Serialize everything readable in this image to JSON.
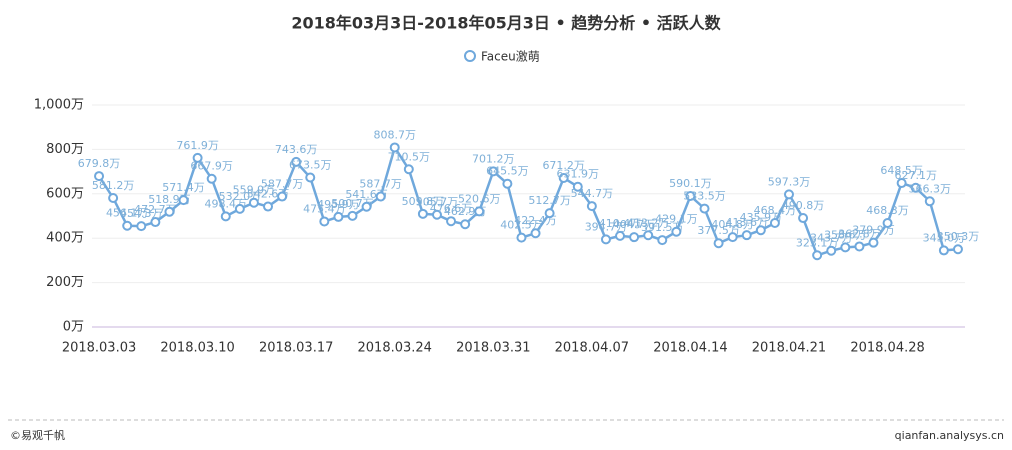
{
  "chart_data": {
    "type": "line",
    "title": "2018年03月3日-2018年05月3日 • 趋势分析 • 活跃人数",
    "series": [
      {
        "name": "Faceu激萌",
        "color": "#6fa8dc",
        "values": [
          679.8,
          581.2,
          456.1,
          454.3,
          472.7,
          518.9,
          571.4,
          761.9,
          667.9,
          498.4,
          532.0,
          559.9,
          542.6,
          587.7,
          743.6,
          673.5,
          475.4,
          495.9,
          500.7,
          541.6,
          587.7,
          808.7,
          710.5,
          509.8,
          505.7,
          476.6,
          462.9,
          520.6,
          701.2,
          645.5,
          402.5,
          422.4,
          512.7,
          671.2,
          631.9,
          544.7,
          394.7,
          410.4,
          404.7,
          413.2,
          391.5,
          429.1,
          590.1,
          533.5,
          377.5,
          404.8,
          413.6,
          435.9,
          468.4,
          597.3,
          490.8,
          323.1,
          343.7,
          358.6,
          362.8,
          379.9,
          468.3,
          648.5,
          627.1,
          566.3,
          345.0,
          350.3
        ],
        "value_labels": [
          "679.8万",
          "581.2万",
          "456.1万",
          "454.3万",
          "472.7万",
          "518.9万",
          "571.4万",
          "761.9万",
          "667.9万",
          "498.4万",
          "532.0万",
          "559.9万",
          "542.6万",
          "587.7万",
          "743.6万",
          "673.5万",
          "475.4万",
          "495.9万",
          "500.7万",
          "541.6万",
          "587.7万",
          "808.7万",
          "710.5万",
          "509.8万",
          "505.7万",
          "476.6万",
          "462.9万",
          "520.6万",
          "701.2万",
          "645.5万",
          "402.5万",
          "422.4万",
          "512.7万",
          "671.2万",
          "631.9万",
          "544.7万",
          "394.7万",
          "410.4万",
          "404.7万",
          "413.2万",
          "391.5万",
          "429.1万",
          "590.1万",
          "533.5万",
          "377.5万",
          "404.8万",
          "413.6万",
          "435.9万",
          "468.4万",
          "597.3万",
          "490.8万",
          "323.1万",
          "343.7万",
          "358.6万",
          "362.8万",
          "379.9万",
          "468.3万",
          "648.5万",
          "627.1万",
          "566.3万",
          "345.0万",
          "350.3万"
        ]
      }
    ],
    "categories": [
      "2018.03.03",
      null,
      null,
      null,
      null,
      null,
      null,
      "2018.03.10",
      null,
      null,
      null,
      null,
      null,
      null,
      "2018.03.17",
      null,
      null,
      null,
      null,
      null,
      null,
      "2018.03.24",
      null,
      null,
      null,
      null,
      null,
      null,
      "2018.03.31",
      null,
      null,
      null,
      null,
      null,
      null,
      "2018.04.07",
      null,
      null,
      null,
      null,
      null,
      null,
      "2018.04.14",
      null,
      null,
      null,
      null,
      null,
      null,
      "2018.04.21",
      null,
      null,
      null,
      null,
      null,
      null,
      "2018.04.28",
      null,
      null,
      null,
      null,
      null
    ],
    "ylim": [
      0,
      1000
    ],
    "yticks": [
      {
        "value": 0,
        "label": "0万"
      },
      {
        "value": 200,
        "label": "200万"
      },
      {
        "value": 400,
        "label": "400万"
      },
      {
        "value": 600,
        "label": "600万"
      },
      {
        "value": 800,
        "label": "800万"
      },
      {
        "value": 1000,
        "label": "1,000万"
      }
    ],
    "grid": true
  },
  "footer": {
    "left": "©易观千帆",
    "right": "qianfan.analysys.cn"
  }
}
